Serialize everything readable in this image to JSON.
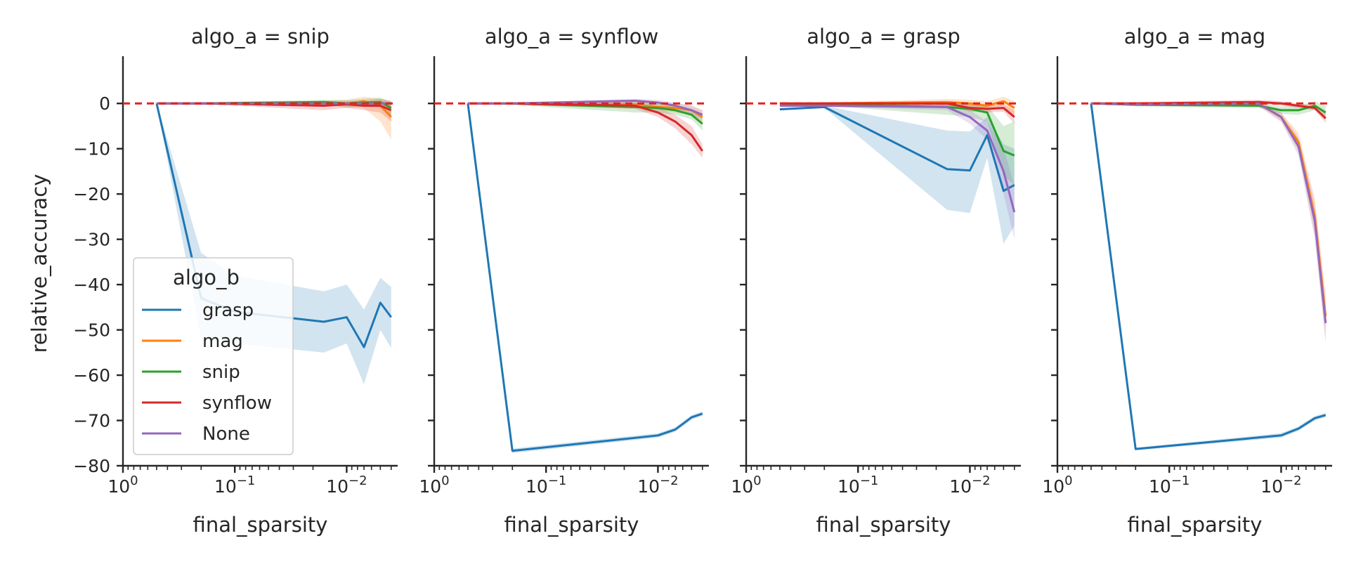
{
  "chart_data": {
    "type": "line",
    "xlabel": "final_sparsity",
    "ylabel": "relative_accuracy",
    "x_scale": "log",
    "x_ticks": [
      {
        "value": 1,
        "base": "10",
        "exp": "0"
      },
      {
        "value": 0.1,
        "base": "10",
        "exp": "−1"
      },
      {
        "value": 0.01,
        "base": "10",
        "exp": "−2"
      }
    ],
    "y_ticks": [
      0,
      -10,
      -20,
      -30,
      -40,
      -50,
      -60,
      -70,
      -80
    ],
    "xlim": [
      1,
      0.0035
    ],
    "ylim": [
      -80,
      5
    ],
    "reference_line": {
      "y": 0,
      "color": "#e32222",
      "style": "dashed"
    },
    "legend": {
      "title": "algo_b",
      "placement": "lower-left of first panel",
      "entries": [
        "grasp",
        "mag",
        "snip",
        "synflow",
        "None"
      ]
    },
    "colors": {
      "grasp": "#1f77b4",
      "mag": "#ff7f0e",
      "snip": "#2ca02c",
      "synflow": "#d62728",
      "None": "#9467bd"
    },
    "panels": [
      {
        "title": "algo_a = snip",
        "series": [
          {
            "name": "grasp",
            "x": [
              0.5,
              0.2,
              0.1,
              0.016,
              0.01,
              0.007,
              0.005,
              0.004
            ],
            "y": [
              0,
              -43,
              -46,
              -48.2,
              -47.2,
              -53.8,
              -44,
              -47.2
            ],
            "lower": [
              0,
              -52,
              -53,
              -55,
              -53,
              -62,
              -50,
              -54
            ],
            "upper": [
              0,
              -33,
              -38,
              -41.5,
              -40,
              -45.5,
              -38.5,
              -40.5
            ]
          },
          {
            "name": "mag",
            "x": [
              0.5,
              0.2,
              0.1,
              0.016,
              0.01,
              0.007,
              0.005,
              0.004
            ],
            "y": [
              0,
              0,
              0,
              0.2,
              0,
              0.5,
              -0.5,
              -3
            ],
            "lower": [
              0,
              0,
              -0.3,
              -0.3,
              -1,
              -1,
              -4,
              -8
            ],
            "upper": [
              0,
              0.2,
              0.3,
              0.6,
              0.8,
              1.5,
              1,
              0
            ]
          },
          {
            "name": "snip",
            "x": [
              0.5,
              0.2,
              0.1,
              0.016,
              0.01,
              0.007,
              0.005,
              0.004
            ],
            "y": [
              0,
              0,
              0.1,
              0.3,
              0,
              0.2,
              0.3,
              -1
            ],
            "lower": [
              0,
              -0.2,
              -0.2,
              -0.2,
              -0.8,
              -0.7,
              -1,
              -3
            ],
            "upper": [
              0,
              0.2,
              0.4,
              0.8,
              0.8,
              1,
              1.3,
              0.5
            ]
          },
          {
            "name": "synflow",
            "x": [
              0.5,
              0.2,
              0.1,
              0.016,
              0.01,
              0.007,
              0.005,
              0.004
            ],
            "y": [
              0,
              0,
              -0.1,
              -0.5,
              -0.2,
              -0.5,
              -0.5,
              -1.5
            ],
            "lower": [
              0,
              -0.3,
              -0.5,
              -1.5,
              -1,
              -1.5,
              -2,
              -4
            ],
            "upper": [
              0,
              0.3,
              0.3,
              0.5,
              0.5,
              0.5,
              1,
              0.5
            ]
          },
          {
            "name": "None",
            "x": [
              0.5,
              0.2,
              0.1,
              0.016,
              0.01,
              0.007,
              0.005,
              0.004
            ],
            "y": [
              0,
              0,
              0,
              0,
              0,
              0,
              0,
              0
            ],
            "lower": [
              0,
              -0.2,
              -0.2,
              -0.2,
              -0.2,
              -0.3,
              -0.3,
              -0.4
            ],
            "upper": [
              0,
              0.2,
              0.2,
              0.2,
              0.2,
              0.3,
              0.3,
              0.4
            ]
          }
        ]
      },
      {
        "title": "algo_a = synflow",
        "series": [
          {
            "name": "grasp",
            "x": [
              0.5,
              0.2,
              0.01,
              0.007,
              0.005,
              0.004
            ],
            "y": [
              0,
              -76.7,
              -73.3,
              -72,
              -69.3,
              -68.5
            ],
            "lower": [
              0,
              -77.2,
              -73.8,
              -72.5,
              -69.8,
              -69
            ],
            "upper": [
              0,
              -76.2,
              -72.8,
              -71.5,
              -68.8,
              -68
            ]
          },
          {
            "name": "mag",
            "x": [
              0.5,
              0.2,
              0.016,
              0.01,
              0.007,
              0.005,
              0.004
            ],
            "y": [
              0,
              0,
              -0.3,
              -0.8,
              -1,
              -1.5,
              -3
            ],
            "lower": [
              0,
              -0.2,
              -0.8,
              -1.5,
              -2,
              -2.5,
              -4.5
            ],
            "upper": [
              0,
              0.2,
              0.2,
              0,
              0,
              -0.5,
              -1.5
            ]
          },
          {
            "name": "snip",
            "x": [
              0.5,
              0.2,
              0.016,
              0.01,
              0.007,
              0.005,
              0.004
            ],
            "y": [
              0,
              0,
              -0.8,
              -1,
              -1.5,
              -2.5,
              -4.5
            ],
            "lower": [
              0,
              -0.3,
              -2,
              -2,
              -2.5,
              -3.5,
              -6
            ],
            "upper": [
              0,
              0.3,
              0.4,
              0,
              -0.5,
              -1.5,
              -3
            ]
          },
          {
            "name": "synflow",
            "x": [
              0.5,
              0.2,
              0.016,
              0.01,
              0.007,
              0.005,
              0.004
            ],
            "y": [
              0,
              0,
              -0.5,
              -2,
              -4,
              -7,
              -10.5
            ],
            "lower": [
              0,
              -0.3,
              -1.2,
              -3,
              -5.5,
              -9,
              -12
            ],
            "upper": [
              0,
              0.3,
              0.2,
              -1,
              -2.5,
              -5,
              -9
            ]
          },
          {
            "name": "None",
            "x": [
              0.5,
              0.2,
              0.016,
              0.01,
              0.007,
              0.005,
              0.004
            ],
            "y": [
              0,
              0,
              0.6,
              0.2,
              -0.5,
              -1.5,
              -2.5
            ],
            "lower": [
              0,
              -0.2,
              0,
              -0.5,
              -1.2,
              -2.5,
              -3.5
            ],
            "upper": [
              0,
              0.2,
              1,
              0.8,
              0.2,
              -0.5,
              -1.5
            ]
          }
        ]
      },
      {
        "title": "algo_a = grasp",
        "series": [
          {
            "name": "grasp",
            "x": [
              0.5,
              0.2,
              0.016,
              0.01,
              0.007,
              0.005,
              0.004
            ],
            "y": [
              -1.3,
              -0.8,
              -14.5,
              -14.8,
              -7,
              -19.3,
              -18
            ],
            "lower": [
              -1.5,
              -1,
              -23.5,
              -24.2,
              -12,
              -31,
              -27
            ],
            "upper": [
              -1,
              -0.5,
              -6,
              -6.2,
              -3,
              -9,
              -10
            ]
          },
          {
            "name": "mag",
            "x": [
              0.5,
              0.2,
              0.016,
              0.01,
              0.007,
              0.005,
              0.004
            ],
            "y": [
              0,
              0,
              0.3,
              0,
              -0.5,
              0.5,
              -1
            ],
            "lower": [
              0,
              -0.2,
              -0.5,
              -0.8,
              -1.5,
              -0.5,
              -3
            ],
            "upper": [
              0,
              0.2,
              1,
              0.8,
              0.5,
              1.5,
              0.5
            ]
          },
          {
            "name": "snip",
            "x": [
              0.5,
              0.2,
              0.016,
              0.01,
              0.007,
              0.005,
              0.004
            ],
            "y": [
              0,
              -0.2,
              -0.8,
              -1.2,
              -2,
              -10.5,
              -11.5
            ],
            "lower": [
              0,
              -0.5,
              -2.5,
              -3,
              -4,
              -16,
              -18
            ],
            "upper": [
              0,
              0.2,
              0.3,
              0,
              -0.5,
              -5,
              -4
            ]
          },
          {
            "name": "synflow",
            "x": [
              0.5,
              0.2,
              0.016,
              0.01,
              0.007,
              0.005,
              0.004
            ],
            "y": [
              0,
              0,
              0,
              -1,
              -1.2,
              -1,
              -3
            ],
            "lower": [
              0,
              -0.3,
              -0.5,
              -1.8,
              -2,
              -1.8,
              -4.5
            ],
            "upper": [
              0,
              0.3,
              0.5,
              -0.2,
              -0.4,
              -0.2,
              -1.5
            ]
          },
          {
            "name": "None",
            "x": [
              0.5,
              0.2,
              0.016,
              0.01,
              0.007,
              0.005,
              0.004
            ],
            "y": [
              -0.5,
              -0.5,
              -0.8,
              -3,
              -6,
              -15,
              -24
            ],
            "lower": [
              -0.7,
              -0.7,
              -1.5,
              -4.5,
              -8,
              -20,
              -30
            ],
            "upper": [
              -0.3,
              -0.3,
              0,
              -1.5,
              -4,
              -10,
              -18
            ]
          }
        ]
      },
      {
        "title": "algo_a = mag",
        "series": [
          {
            "name": "grasp",
            "x": [
              0.5,
              0.2,
              0.01,
              0.007,
              0.005,
              0.004
            ],
            "y": [
              0,
              -76.3,
              -73.3,
              -71.8,
              -69.5,
              -68.8
            ],
            "lower": [
              0,
              -76.6,
              -73.8,
              -72.3,
              -70,
              -69.3
            ],
            "upper": [
              0,
              -76,
              -72.8,
              -71.3,
              -69,
              -68.3
            ]
          },
          {
            "name": "mag",
            "x": [
              0.5,
              0.2,
              0.016,
              0.01,
              0.007,
              0.005,
              0.004
            ],
            "y": [
              0,
              0,
              0,
              -3,
              -8.5,
              -25,
              -47
            ],
            "lower": [
              0,
              -0.2,
              -0.5,
              -4,
              -10.5,
              -29,
              -52
            ],
            "upper": [
              0,
              0.2,
              0.5,
              -2,
              -6.5,
              -21,
              -42
            ]
          },
          {
            "name": "snip",
            "x": [
              0.5,
              0.2,
              0.016,
              0.01,
              0.007,
              0.005,
              0.004
            ],
            "y": [
              0,
              -0.3,
              -0.5,
              -1.5,
              -1.5,
              -0.5,
              -2
            ],
            "lower": [
              0,
              -0.6,
              -1,
              -2.3,
              -2.5,
              -1.5,
              -3.5
            ],
            "upper": [
              0,
              0,
              0,
              -0.7,
              -0.5,
              0.5,
              -0.5
            ]
          },
          {
            "name": "synflow",
            "x": [
              0.5,
              0.2,
              0.016,
              0.01,
              0.007,
              0.005,
              0.004
            ],
            "y": [
              0,
              0,
              0.3,
              0,
              -0.5,
              -1,
              -3.3
            ],
            "lower": [
              0,
              -0.3,
              -0.2,
              -0.5,
              -1,
              -1.5,
              -4.3
            ],
            "upper": [
              0,
              0.3,
              0.8,
              0.5,
              0,
              -0.5,
              -2.3
            ]
          },
          {
            "name": "None",
            "x": [
              0.5,
              0.2,
              0.016,
              0.01,
              0.007,
              0.005,
              0.004
            ],
            "y": [
              0,
              -0.2,
              0,
              -3,
              -9.5,
              -26,
              -48.5
            ],
            "lower": [
              0,
              -0.5,
              -0.5,
              -4,
              -11.5,
              -30,
              -53
            ],
            "upper": [
              0,
              0.1,
              0.5,
              -2,
              -7.5,
              -22,
              -44
            ]
          }
        ]
      }
    ]
  }
}
